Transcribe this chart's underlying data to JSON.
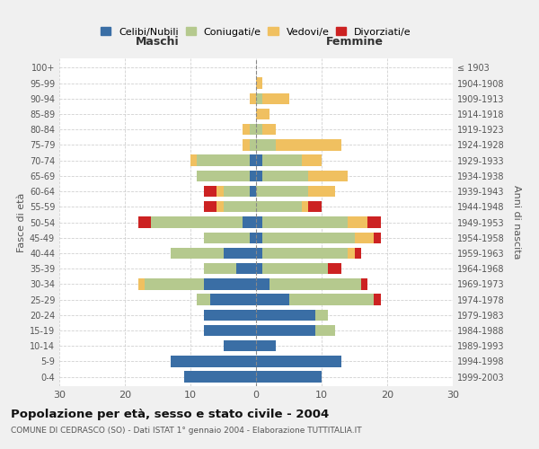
{
  "age_groups": [
    "0-4",
    "5-9",
    "10-14",
    "15-19",
    "20-24",
    "25-29",
    "30-34",
    "35-39",
    "40-44",
    "45-49",
    "50-54",
    "55-59",
    "60-64",
    "65-69",
    "70-74",
    "75-79",
    "80-84",
    "85-89",
    "90-94",
    "95-99",
    "100+"
  ],
  "birth_years": [
    "1999-2003",
    "1994-1998",
    "1989-1993",
    "1984-1988",
    "1979-1983",
    "1974-1978",
    "1969-1973",
    "1964-1968",
    "1959-1963",
    "1954-1958",
    "1949-1953",
    "1944-1948",
    "1939-1943",
    "1934-1938",
    "1929-1933",
    "1924-1928",
    "1919-1923",
    "1914-1918",
    "1909-1913",
    "1904-1908",
    "≤ 1903"
  ],
  "male": {
    "celibi": [
      11,
      13,
      5,
      8,
      8,
      7,
      8,
      3,
      5,
      1,
      2,
      0,
      1,
      1,
      1,
      0,
      0,
      0,
      0,
      0,
      0
    ],
    "coniugati": [
      0,
      0,
      0,
      0,
      0,
      2,
      9,
      5,
      8,
      7,
      14,
      5,
      4,
      8,
      8,
      1,
      1,
      0,
      0,
      0,
      0
    ],
    "vedovi": [
      0,
      0,
      0,
      0,
      0,
      0,
      1,
      0,
      0,
      0,
      0,
      1,
      1,
      0,
      1,
      1,
      1,
      0,
      1,
      0,
      0
    ],
    "divorziati": [
      0,
      0,
      0,
      0,
      0,
      0,
      0,
      0,
      0,
      0,
      2,
      2,
      2,
      0,
      0,
      0,
      0,
      0,
      0,
      0,
      0
    ]
  },
  "female": {
    "nubili": [
      10,
      13,
      3,
      9,
      9,
      5,
      2,
      1,
      1,
      1,
      1,
      0,
      0,
      1,
      1,
      0,
      0,
      0,
      0,
      0,
      0
    ],
    "coniugate": [
      0,
      0,
      0,
      3,
      2,
      13,
      14,
      10,
      13,
      14,
      13,
      7,
      8,
      7,
      6,
      3,
      1,
      0,
      1,
      0,
      0
    ],
    "vedove": [
      0,
      0,
      0,
      0,
      0,
      0,
      0,
      0,
      1,
      3,
      3,
      1,
      4,
      6,
      3,
      10,
      2,
      2,
      4,
      1,
      0
    ],
    "divorziate": [
      0,
      0,
      0,
      0,
      0,
      1,
      1,
      2,
      1,
      1,
      2,
      2,
      0,
      0,
      0,
      0,
      0,
      0,
      0,
      0,
      0
    ]
  },
  "colors": {
    "celibi": "#3a6ea5",
    "coniugati": "#b5c98e",
    "vedovi": "#f0c060",
    "divorziati": "#cc2222"
  },
  "title": "Popolazione per età, sesso e stato civile - 2004",
  "subtitle": "COMUNE DI CEDRASCO (SO) - Dati ISTAT 1° gennaio 2004 - Elaborazione TUTTITALIA.IT",
  "xlabel_left": "Maschi",
  "xlabel_right": "Femmine",
  "ylabel_left": "Fasce di età",
  "ylabel_right": "Anni di nascita",
  "legend_labels": [
    "Celibi/Nubili",
    "Coniugati/e",
    "Vedovi/e",
    "Divorziati/e"
  ],
  "xlim": 30,
  "bg_color": "#f0f0f0",
  "plot_bg_color": "#ffffff",
  "grid_color": "#cccccc"
}
